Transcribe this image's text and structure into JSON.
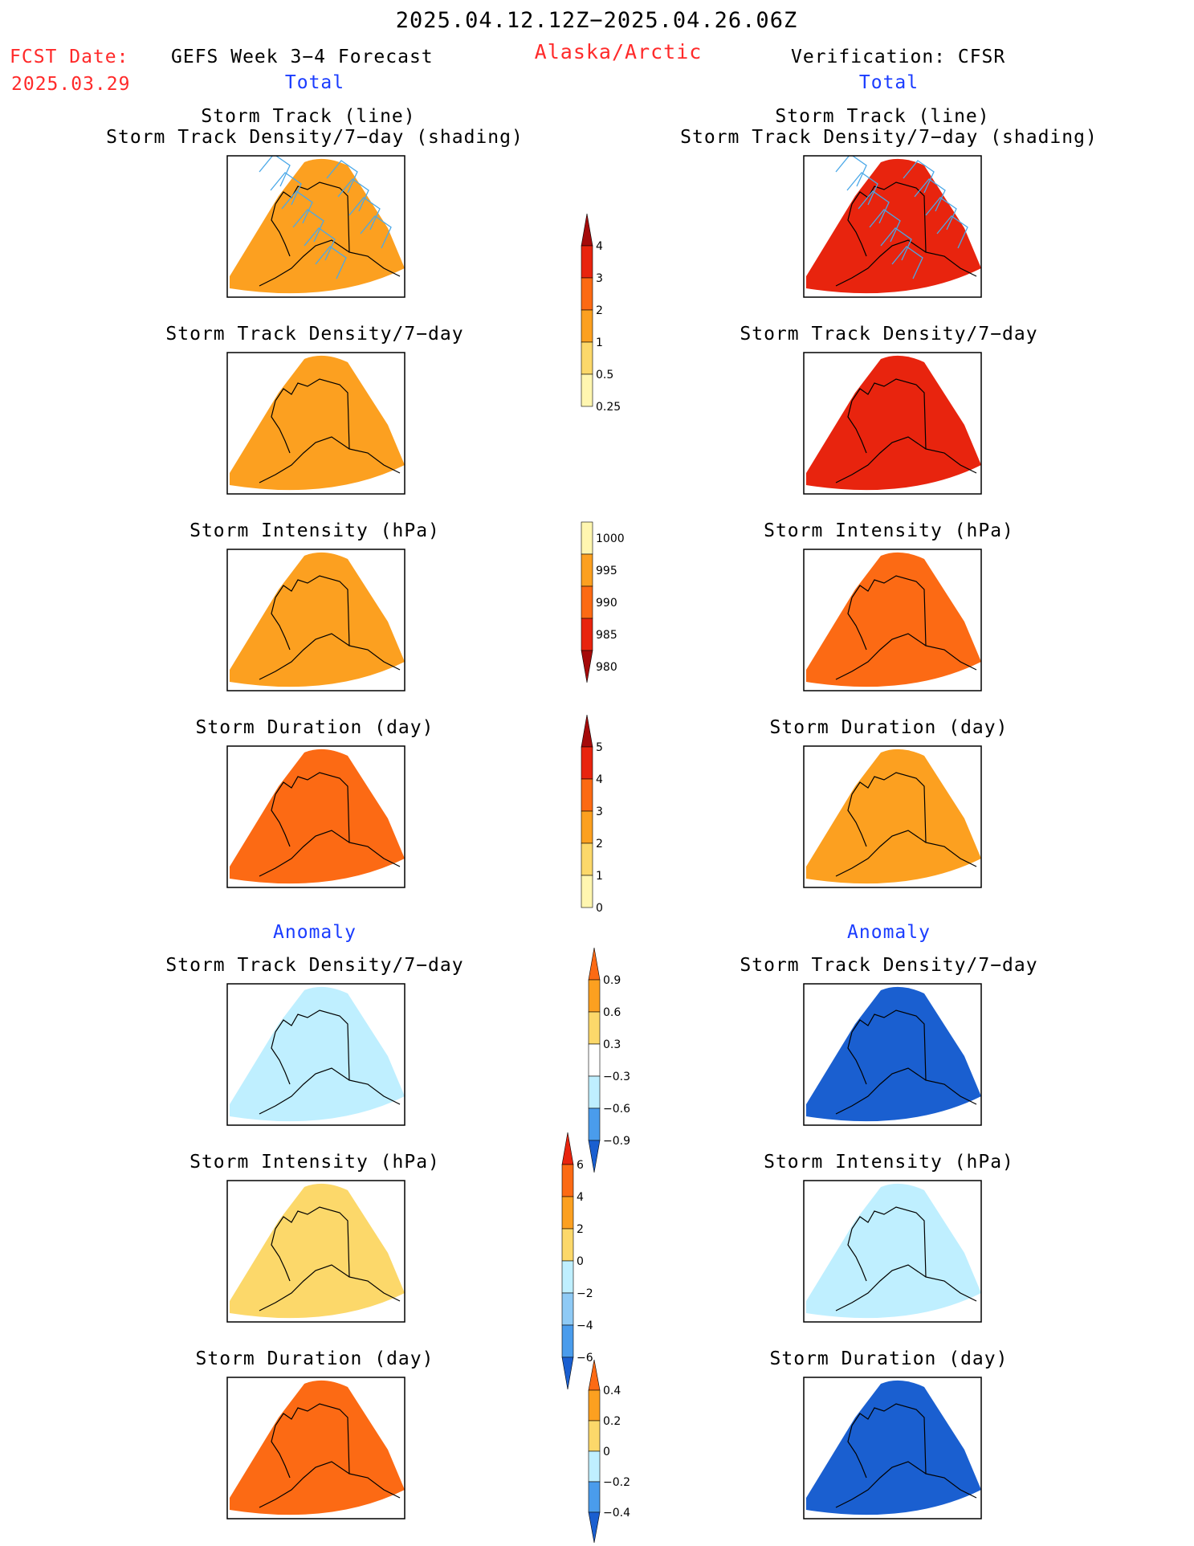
{
  "header": {
    "date_range": "2025.04.12.12Z−2025.04.26.06Z",
    "fcst_label": "FCST Date:",
    "fcst_date": "2025.03.29",
    "forecast_title": "GEFS Week 3−4 Forecast",
    "region": "Alaska/Arctic",
    "verification_title": "Verification: CFSR",
    "left_section": "Total",
    "right_section": "Total",
    "left_anomaly": "Anomaly",
    "right_anomaly": "Anomaly"
  },
  "colors": {
    "yellow_light": "#fff6b0",
    "yellow": "#fcd86a",
    "orange_light": "#fca020",
    "orange": "#fc6a14",
    "red": "#e8240e",
    "red_dark": "#a50a0a",
    "blue_light": "#bfefff",
    "blue_mid": "#8fcaf5",
    "blue": "#4a9cec",
    "blue_dark": "#1a5fd0",
    "track_line": "#4aa8e8"
  },
  "chart_data": [
    {
      "type": "heatmap",
      "panel": "left-1",
      "title_line1": "Storm Track (line)",
      "title_line2": "Storm Track Density/7−day (shading)",
      "fill": "orange_light",
      "overlay": "storm_tracks"
    },
    {
      "type": "heatmap",
      "panel": "right-1",
      "title_line1": "Storm Track (line)",
      "title_line2": "Storm Track Density/7−day (shading)",
      "fill": "red",
      "overlay": "storm_tracks"
    },
    {
      "type": "heatmap",
      "panel": "left-2",
      "title": "Storm Track Density/7−day",
      "fill": "orange_light"
    },
    {
      "type": "heatmap",
      "panel": "right-2",
      "title": "Storm Track Density/7−day",
      "fill": "red"
    },
    {
      "type": "heatmap",
      "panel": "left-3",
      "title": "Storm Intensity (hPa)",
      "fill": "orange_light"
    },
    {
      "type": "heatmap",
      "panel": "right-3",
      "title": "Storm Intensity (hPa)",
      "fill": "orange"
    },
    {
      "type": "heatmap",
      "panel": "left-4",
      "title": "Storm Duration (day)",
      "fill": "orange"
    },
    {
      "type": "heatmap",
      "panel": "right-4",
      "title": "Storm Duration (day)",
      "fill": "orange_light"
    },
    {
      "type": "heatmap",
      "panel": "left-5",
      "title": "Storm Track Density/7−day",
      "fill": "blue_light"
    },
    {
      "type": "heatmap",
      "panel": "right-5",
      "title": "Storm Track Density/7−day",
      "fill": "blue_dark"
    },
    {
      "type": "heatmap",
      "panel": "left-6",
      "title": "Storm Intensity (hPa)",
      "fill": "yellow"
    },
    {
      "type": "heatmap",
      "panel": "right-6",
      "title": "Storm Intensity (hPa)",
      "fill": "blue_light"
    },
    {
      "type": "heatmap",
      "panel": "left-7",
      "title": "Storm Duration (day)",
      "fill": "orange"
    },
    {
      "type": "heatmap",
      "panel": "right-7",
      "title": "Storm Duration (day)",
      "fill": "blue_dark"
    }
  ],
  "colorbars": {
    "density_total": {
      "labels": [
        "4",
        "3",
        "2",
        "1",
        "0.5",
        "0.25"
      ],
      "colors": [
        "red_dark",
        "red",
        "orange",
        "orange_light",
        "yellow",
        "yellow_light"
      ]
    },
    "intensity_total": {
      "labels": [
        "1000",
        "995",
        "990",
        "985",
        "980"
      ],
      "colors": [
        "yellow_light",
        "orange_light",
        "orange",
        "red",
        "red_dark"
      ]
    },
    "duration_total": {
      "labels": [
        "5",
        "4",
        "3",
        "2",
        "1",
        "0"
      ],
      "colors": [
        "red_dark",
        "red",
        "orange",
        "orange_light",
        "yellow",
        "yellow_light"
      ]
    },
    "density_anom": {
      "labels": [
        "0.9",
        "0.6",
        "0.3",
        "−0.3",
        "−0.6",
        "−0.9"
      ],
      "colors": [
        "orange",
        "orange_light",
        "yellow",
        "white",
        "blue_light",
        "blue",
        "blue_dark"
      ]
    },
    "intensity_anom": {
      "labels": [
        "6",
        "4",
        "2",
        "0",
        "−2",
        "−4",
        "−6"
      ],
      "colors": [
        "red",
        "orange",
        "orange_light",
        "yellow",
        "blue_light",
        "blue_mid",
        "blue",
        "blue_dark"
      ]
    },
    "duration_anom": {
      "labels": [
        "0.4",
        "0.2",
        "0",
        "−0.2",
        "−0.4"
      ],
      "colors": [
        "orange",
        "orange_light",
        "yellow",
        "blue_light",
        "blue",
        "blue_dark"
      ]
    }
  }
}
